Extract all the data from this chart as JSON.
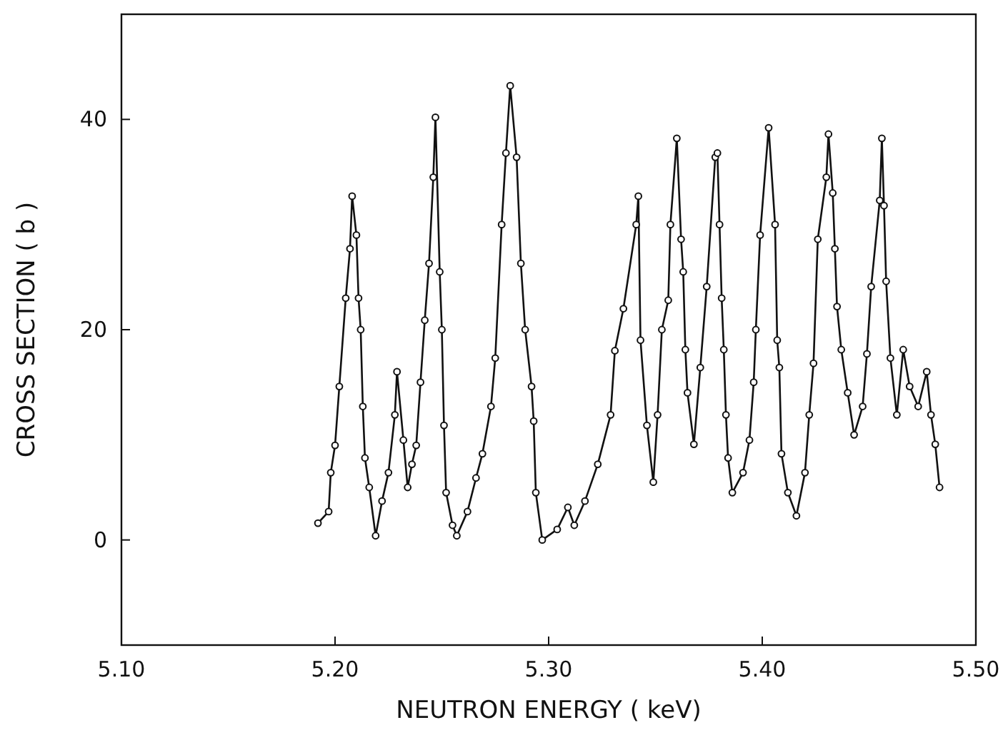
{
  "chart_data": {
    "type": "line",
    "xlabel": "NEUTRON ENERGY ( keV)",
    "ylabel": "CROSS SECTION ( b )",
    "xlim": [
      5.1,
      5.5
    ],
    "xticks": [
      {
        "value": 5.1,
        "label": "5.10"
      },
      {
        "value": 5.2,
        "label": "5.20"
      },
      {
        "value": 5.3,
        "label": "5.30"
      },
      {
        "value": 5.4,
        "label": "5.40"
      },
      {
        "value": 5.5,
        "label": "5.50"
      }
    ],
    "ylim": [
      -10,
      50
    ],
    "yticks": [
      0,
      20,
      40
    ],
    "marker": "circle",
    "line_style": "solid",
    "x": [
      5.192,
      5.197,
      5.198,
      5.2,
      5.202,
      5.205,
      5.207,
      5.208,
      5.21,
      5.211,
      5.212,
      5.213,
      5.214,
      5.216,
      5.219,
      5.222,
      5.225,
      5.228,
      5.229,
      5.232,
      5.234,
      5.236,
      5.238,
      5.24,
      5.242,
      5.244,
      5.246,
      5.247,
      5.249,
      5.25,
      5.251,
      5.252,
      5.255,
      5.257,
      5.262,
      5.266,
      5.269,
      5.273,
      5.275,
      5.278,
      5.28,
      5.282,
      5.285,
      5.287,
      5.289,
      5.292,
      5.293,
      5.294,
      5.297,
      5.304,
      5.309,
      5.312,
      5.317,
      5.323,
      5.329,
      5.331,
      5.335,
      5.341,
      5.342,
      5.343,
      5.346,
      5.349,
      5.351,
      5.353,
      5.356,
      5.357,
      5.36,
      5.362,
      5.363,
      5.364,
      5.365,
      5.368,
      5.371,
      5.374,
      5.378,
      5.379,
      5.38,
      5.381,
      5.382,
      5.383,
      5.384,
      5.386,
      5.391,
      5.394,
      5.396,
      5.397,
      5.399,
      5.403,
      5.406,
      5.407,
      5.408,
      5.409,
      5.412,
      5.416,
      5.42,
      5.422,
      5.424,
      5.426,
      5.43,
      5.431,
      5.433,
      5.434,
      5.435,
      5.437,
      5.44,
      5.443,
      5.447,
      5.449,
      5.451,
      5.455,
      5.456,
      5.457,
      5.458,
      5.46,
      5.463,
      5.466,
      5.469,
      5.473,
      5.477,
      5.479,
      5.481,
      5.483
    ],
    "series": [
      {
        "color": "#111111",
        "values": [
          1.6,
          2.7,
          6.4,
          9,
          14.6,
          23,
          27.7,
          32.7,
          29,
          23,
          20,
          12.7,
          7.8,
          5,
          0.4,
          3.7,
          6.4,
          11.9,
          16,
          9.5,
          5,
          7.2,
          9,
          15,
          20.9,
          26.3,
          34.5,
          40.2,
          25.5,
          20,
          10.9,
          4.5,
          1.4,
          0.4,
          2.7,
          5.9,
          8.2,
          12.7,
          17.3,
          30,
          36.8,
          43.2,
          36.4,
          26.3,
          20,
          14.6,
          11.3,
          4.5,
          0,
          1,
          3.1,
          1.4,
          3.7,
          7.2,
          11.9,
          18,
          22,
          30,
          32.7,
          19,
          10.9,
          5.5,
          11.9,
          20,
          22.8,
          30,
          38.2,
          28.6,
          25.5,
          18.1,
          14,
          9.1,
          16.4,
          24.1,
          36.4,
          36.8,
          30,
          23,
          18.1,
          11.9,
          7.8,
          4.5,
          6.4,
          9.5,
          15,
          20,
          29,
          39.2,
          30,
          19,
          16.4,
          8.2,
          4.5,
          2.3,
          6.4,
          11.9,
          16.8,
          28.6,
          34.5,
          38.6,
          33,
          27.7,
          22.2,
          18.1,
          14,
          10,
          12.7,
          17.7,
          24.1,
          32.3,
          38.2,
          31.8,
          24.6,
          17.3,
          11.9,
          18.1,
          14.6,
          12.7,
          16,
          11.9,
          9.1,
          5
        ]
      }
    ]
  }
}
